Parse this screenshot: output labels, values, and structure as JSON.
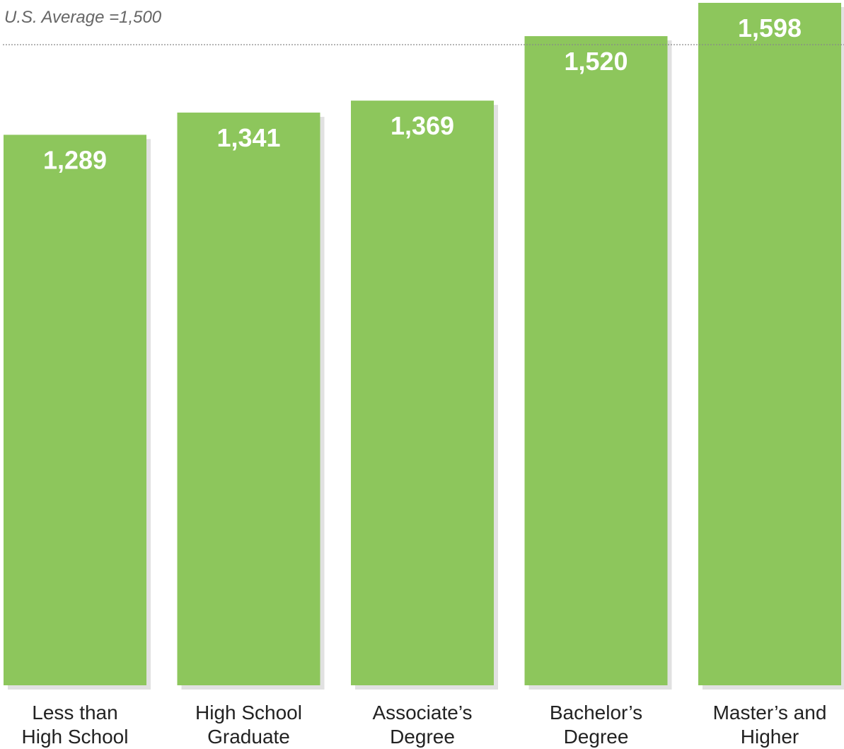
{
  "chart_data": {
    "type": "bar",
    "categories": [
      [
        "Less than",
        "High School"
      ],
      [
        "High School",
        "Graduate"
      ],
      [
        "Associate’s",
        "Degree"
      ],
      [
        "Bachelor’s",
        "Degree"
      ],
      [
        "Master’s and",
        "Higher"
      ]
    ],
    "values": [
      1289,
      1341,
      1369,
      1520,
      1598
    ],
    "value_labels": [
      "1,289",
      "1,341",
      "1,369",
      "1,520",
      "1,598"
    ],
    "reference_line": {
      "value": 1500,
      "label": "U.S. Average =1,500",
      "style": "dotted"
    },
    "title": "",
    "xlabel": "",
    "ylabel": "",
    "ylim": [
      0,
      1598
    ],
    "grid": false,
    "colors": {
      "bar": "#8dc65c",
      "bar_shadow": "#c9c9c9",
      "value_text": "#ffffff",
      "category_text": "#222222",
      "reference_line": "#888888",
      "reference_text": "#666666"
    }
  }
}
